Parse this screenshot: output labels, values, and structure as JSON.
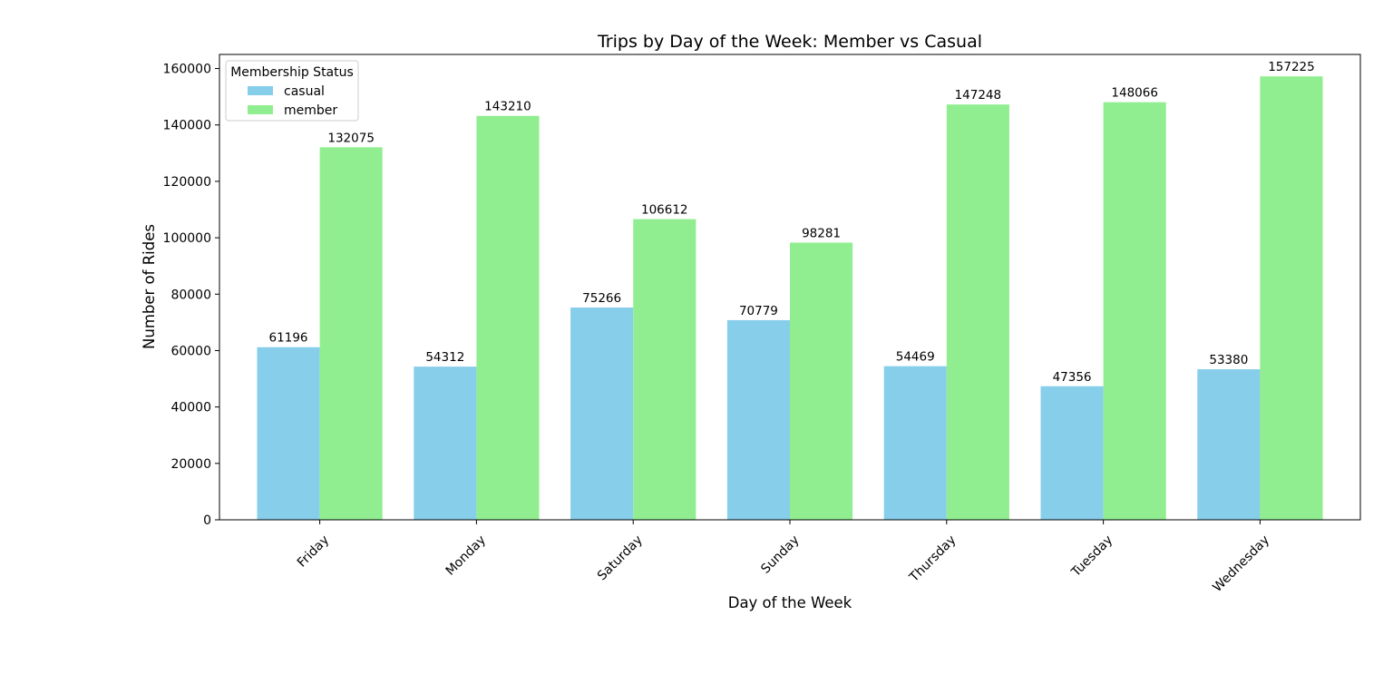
{
  "chart_data": {
    "type": "bar",
    "title": "Trips by Day of the Week: Member vs Casual",
    "xlabel": "Day of the Week",
    "ylabel": "Number of Rides",
    "categories": [
      "Friday",
      "Monday",
      "Saturday",
      "Sunday",
      "Thursday",
      "Tuesday",
      "Wednesday"
    ],
    "series": [
      {
        "name": "casual",
        "color": "#87ceeb",
        "values": [
          61196,
          54312,
          75266,
          70779,
          54469,
          47356,
          53380
        ]
      },
      {
        "name": "member",
        "color": "#90ee90",
        "values": [
          132075,
          143210,
          106612,
          98281,
          147248,
          148066,
          157225
        ]
      }
    ],
    "ylim": [
      0,
      165000
    ],
    "yticks": [
      0,
      20000,
      40000,
      60000,
      80000,
      100000,
      120000,
      140000,
      160000
    ],
    "legend": {
      "title": "Membership Status",
      "placement": "top-left"
    },
    "grid": false,
    "xtick_rotation": -45
  }
}
